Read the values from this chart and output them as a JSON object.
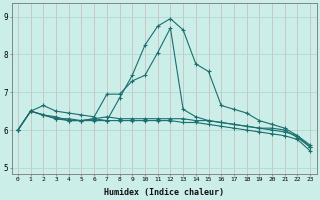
{
  "xlabel": "Humidex (Indice chaleur)",
  "background_color": "#cceee8",
  "grid_color": "#aad4ce",
  "line_color": "#1a6e6e",
  "xlim": [
    -0.5,
    23.5
  ],
  "ylim": [
    4.85,
    9.35
  ],
  "xticks": [
    0,
    1,
    2,
    3,
    4,
    5,
    6,
    7,
    8,
    9,
    10,
    11,
    12,
    13,
    14,
    15,
    16,
    17,
    18,
    19,
    20,
    21,
    22,
    23
  ],
  "yticks": [
    5,
    6,
    7,
    8,
    9
  ],
  "series": [
    [
      6.0,
      6.5,
      6.4,
      6.3,
      6.3,
      6.25,
      6.3,
      6.25,
      6.85,
      7.45,
      8.25,
      8.75,
      8.95,
      8.65,
      7.75,
      7.55,
      6.65,
      6.55,
      6.45,
      6.25,
      6.15,
      6.05,
      5.85,
      5.6
    ],
    [
      6.0,
      6.5,
      6.65,
      6.5,
      6.45,
      6.4,
      6.35,
      6.95,
      6.95,
      7.3,
      7.45,
      8.05,
      8.7,
      6.55,
      6.35,
      6.25,
      6.2,
      6.15,
      6.1,
      6.05,
      6.05,
      6.0,
      5.8,
      5.55
    ],
    [
      6.0,
      6.5,
      6.4,
      6.35,
      6.25,
      6.25,
      6.3,
      6.35,
      6.3,
      6.3,
      6.3,
      6.3,
      6.3,
      6.3,
      6.25,
      6.25,
      6.2,
      6.15,
      6.1,
      6.05,
      6.0,
      5.95,
      5.85,
      5.55
    ],
    [
      6.0,
      6.5,
      6.4,
      6.3,
      6.25,
      6.25,
      6.25,
      6.25,
      6.25,
      6.25,
      6.25,
      6.25,
      6.25,
      6.2,
      6.2,
      6.15,
      6.1,
      6.05,
      6.0,
      5.95,
      5.9,
      5.85,
      5.75,
      5.45
    ]
  ]
}
